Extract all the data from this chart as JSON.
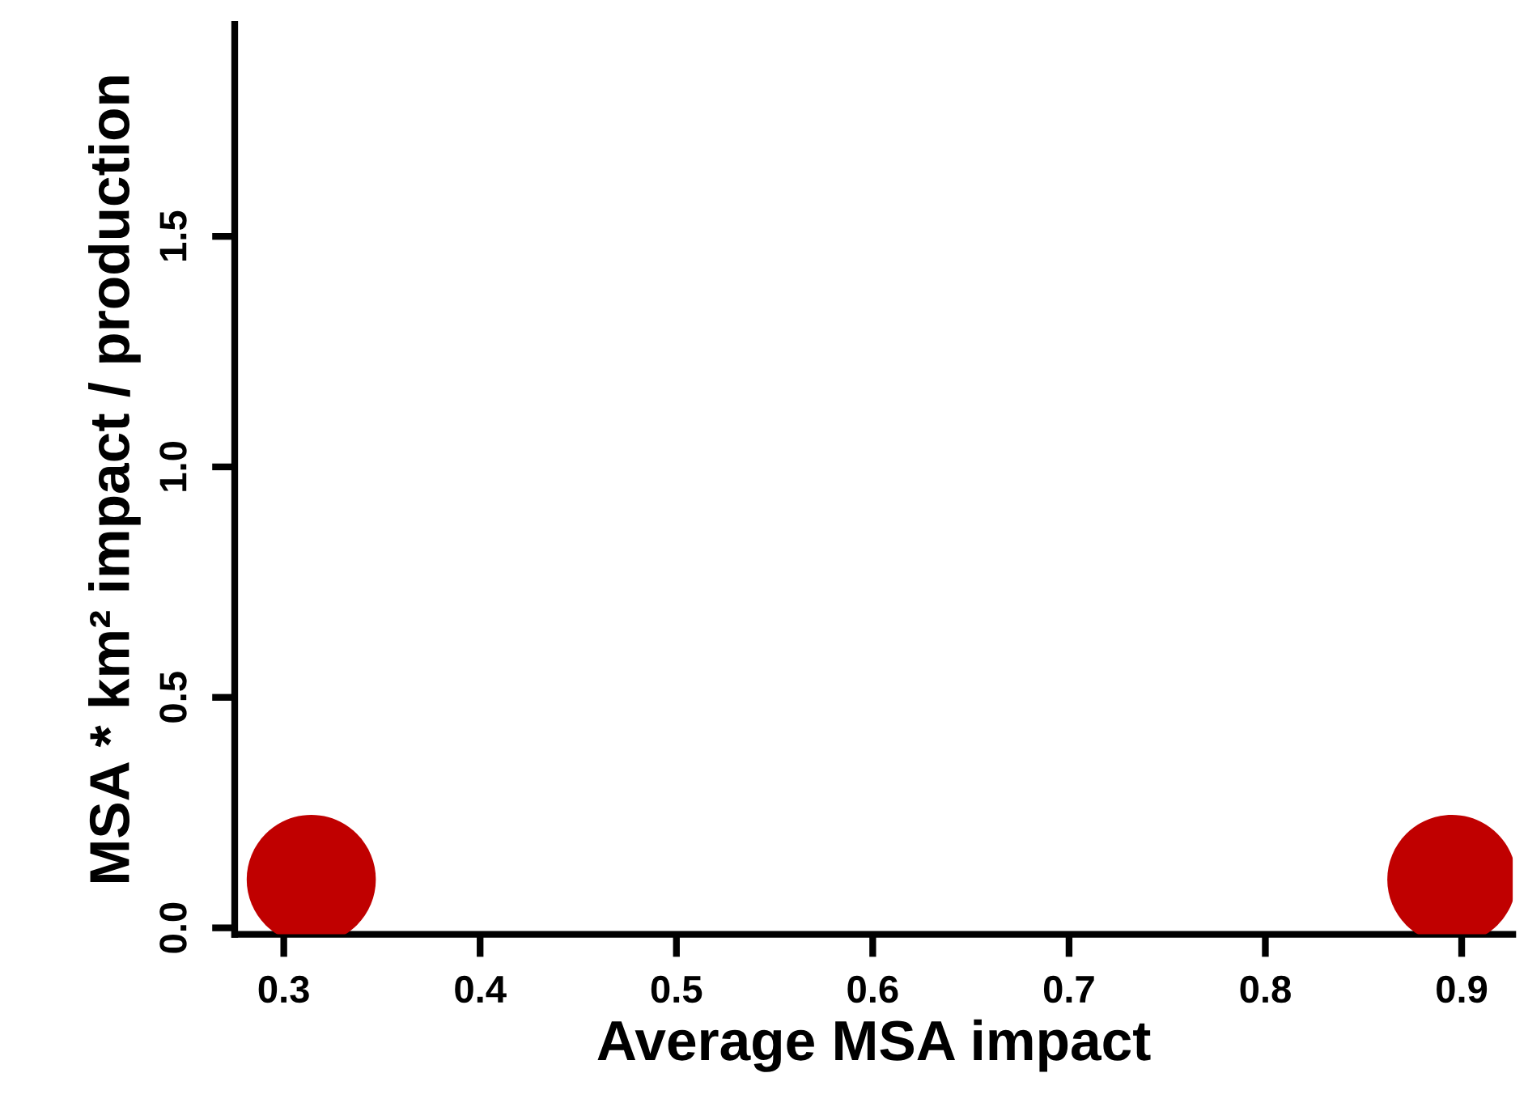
{
  "chart_data": {
    "type": "scatter",
    "xlabel": "Average MSA impact",
    "ylabel": "MSA * km² impact / production",
    "x": [
      0.314,
      0.895
    ],
    "values": [
      0.105,
      0.105
    ],
    "color": "#c00000",
    "marker": "circle",
    "xlim": [
      0.275,
      0.926
    ],
    "ylim": [
      -0.014,
      1.96
    ],
    "xticks": [
      {
        "value": 0.3,
        "label": "0.3"
      },
      {
        "value": 0.4,
        "label": "0.4"
      },
      {
        "value": 0.5,
        "label": "0.5"
      },
      {
        "value": 0.6,
        "label": "0.6"
      },
      {
        "value": 0.7,
        "label": "0.7"
      },
      {
        "value": 0.8,
        "label": "0.8"
      },
      {
        "value": 0.9,
        "label": "0.9"
      }
    ],
    "yticks": [
      {
        "value": 0,
        "label": "0.0"
      },
      {
        "value": 0.5,
        "label": "0.5"
      },
      {
        "value": 1,
        "label": "1.0"
      },
      {
        "value": 1.5,
        "label": "1.5"
      }
    ],
    "grid": false,
    "legend": false
  }
}
